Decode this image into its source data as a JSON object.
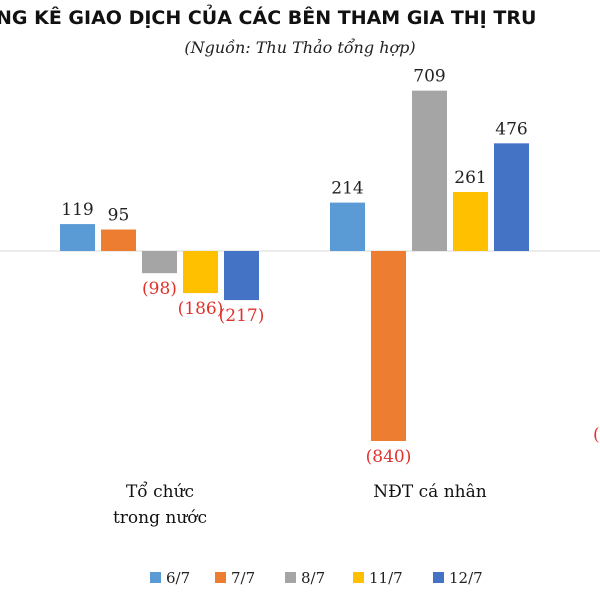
{
  "chart_data": {
    "type": "bar",
    "title": "NG KÊ GIAO DỊCH CỦA CÁC BÊN THAM GIA THỊ TRU",
    "subtitle": "(Nguồn: Thu Thảo tổng hợp)",
    "categories": [
      {
        "lines": [
          "Tổ chức",
          "trong nước"
        ]
      },
      {
        "lines": [
          "NĐT cá nhân"
        ]
      }
    ],
    "series": [
      {
        "name": "6/7",
        "color": "#5b9bd5",
        "values": [
          119,
          214
        ]
      },
      {
        "name": "7/7",
        "color": "#ed7d31",
        "values": [
          95,
          -840
        ]
      },
      {
        "name": "8/7",
        "color": "#a5a5a5",
        "values": [
          -98,
          709
        ]
      },
      {
        "name": "11/7",
        "color": "#ffc000",
        "values": [
          -186,
          261
        ]
      },
      {
        "name": "12/7",
        "color": "#4472c4",
        "values": [
          -217,
          476
        ]
      }
    ],
    "data_labels": [
      [
        "119",
        "95",
        "(98)",
        "(186)",
        "(217)"
      ],
      [
        "214",
        "(840)",
        "709",
        "261",
        "476"
      ]
    ],
    "partial_label": "(",
    "negative_label_color": "#e0312b",
    "positive_label_color": "#222222",
    "legend_position": "bottom",
    "grid": false
  }
}
